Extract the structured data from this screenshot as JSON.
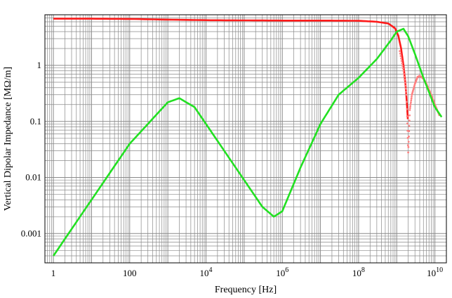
{
  "chart_data": {
    "type": "line",
    "title": "",
    "xlabel": "Frequency  [Hz]",
    "ylabel": "Vertical Dipolar Impedance  [MΩ/m]",
    "x_scale": "log",
    "y_scale": "log",
    "xlim": [
      0.6,
      20000000000
    ],
    "ylim": [
      0.0003,
      8
    ],
    "grid": true,
    "legend": "none",
    "x_ticks": [
      {
        "value": 1,
        "base": "1",
        "exp": ""
      },
      {
        "value": 100,
        "base": "100",
        "exp": ""
      },
      {
        "value": 10000,
        "base": "10",
        "exp": "4"
      },
      {
        "value": 1000000,
        "base": "10",
        "exp": "6"
      },
      {
        "value": 100000000,
        "base": "10",
        "exp": "8"
      },
      {
        "value": 10000000000,
        "base": "10",
        "exp": "10"
      }
    ],
    "y_ticks": [
      {
        "value": 0.001,
        "label": "0.001"
      },
      {
        "value": 0.01,
        "label": "0.01"
      },
      {
        "value": 0.1,
        "label": "0.1"
      },
      {
        "value": 1,
        "label": "1"
      }
    ],
    "series": [
      {
        "color": "#ff1a1a",
        "style": "line",
        "x": [
          1,
          10,
          100,
          1000,
          10000,
          100000,
          1000000,
          10000000,
          100000000,
          300000000,
          600000000,
          900000000,
          1100000000,
          1300000000,
          1500000000,
          1700000000,
          1850000000,
          1950000000
        ],
        "y": [
          6.8,
          6.8,
          6.75,
          6.55,
          6.4,
          6.35,
          6.3,
          6.3,
          6.25,
          6.0,
          5.6,
          4.6,
          3.4,
          2.0,
          1.0,
          0.45,
          0.2,
          0.11
        ]
      },
      {
        "color": "#ff8080",
        "style": "dots",
        "x": [
          1200000000,
          1500000000,
          1800000000,
          2000000000,
          2200000000,
          2500000000,
          3000000000,
          3500000000,
          4000000000,
          5000000000,
          6000000000,
          8000000000,
          10000000000,
          13000000000
        ],
        "y": [
          1.8,
          0.8,
          0.3,
          0.028,
          0.16,
          0.3,
          0.47,
          0.62,
          0.65,
          0.58,
          0.47,
          0.3,
          0.2,
          0.13
        ]
      },
      {
        "color": "#22e022",
        "style": "line",
        "x": [
          1,
          10,
          100,
          1000,
          2000,
          5000,
          10000,
          100000,
          300000,
          600000,
          1000000,
          3000000,
          10000000,
          30000000,
          100000000,
          300000000,
          700000000,
          1000000000,
          1500000000,
          2000000000,
          3000000000,
          5000000000,
          10000000000,
          15000000000
        ],
        "y": [
          0.0004,
          0.004,
          0.04,
          0.22,
          0.26,
          0.18,
          0.09,
          0.009,
          0.003,
          0.002,
          0.0025,
          0.015,
          0.09,
          0.3,
          0.6,
          1.3,
          2.8,
          4.0,
          4.5,
          3.3,
          1.6,
          0.6,
          0.18,
          0.12
        ]
      }
    ]
  }
}
